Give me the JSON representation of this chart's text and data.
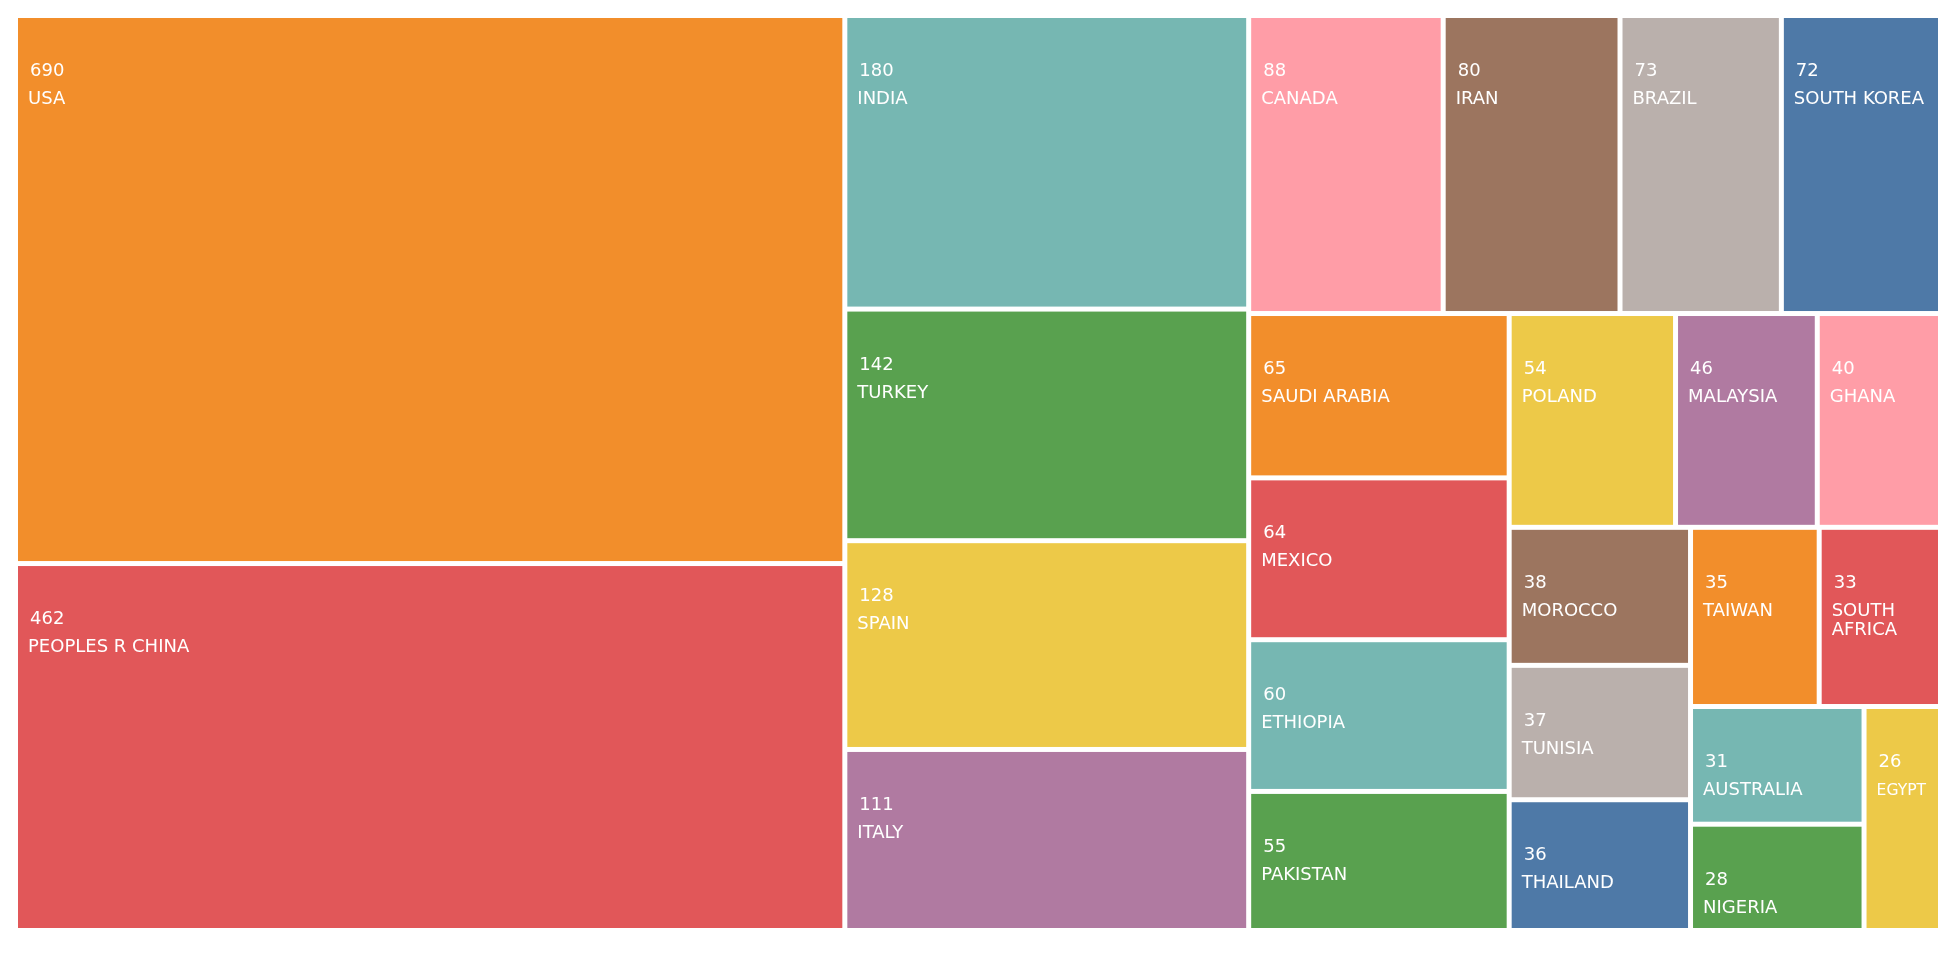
{
  "chart_data": {
    "type": "other",
    "categories": [
      "USA",
      "PEOPLES R CHINA",
      "INDIA",
      "TURKEY",
      "SPAIN",
      "ITALY",
      "CANADA",
      "IRAN",
      "BRAZIL",
      "SOUTH KOREA",
      "SAUDI ARABIA",
      "MEXICO",
      "ETHIOPIA",
      "PAKISTAN",
      "POLAND",
      "MALAYSIA",
      "GHANA",
      "MOROCCO",
      "TUNISIA",
      "THAILAND",
      "TAIWAN",
      "SOUTH AFRICA",
      "AUSTRALIA",
      "NIGERIA",
      "EGYPT"
    ],
    "values": [
      690,
      462,
      180,
      142,
      128,
      111,
      88,
      80,
      73,
      72,
      65,
      64,
      60,
      55,
      54,
      46,
      40,
      38,
      37,
      36,
      35,
      33,
      31,
      28,
      26
    ],
    "colors": [
      "#f28e2b",
      "#e15759",
      "#76b7b2",
      "#59a14f",
      "#edc948",
      "#b07aa1",
      "#ff9da7",
      "#9c755f",
      "#bab0ac",
      "#4e79a7",
      "#f28e2b",
      "#e15759",
      "#76b7b2",
      "#59a14f",
      "#edc948",
      "#b07aa1",
      "#ff9da7",
      "#9c755f",
      "#bab0ac",
      "#4e79a7",
      "#f28e2b",
      "#e15759",
      "#76b7b2",
      "#59a14f",
      "#edc948"
    ],
    "data_labels": true
  }
}
